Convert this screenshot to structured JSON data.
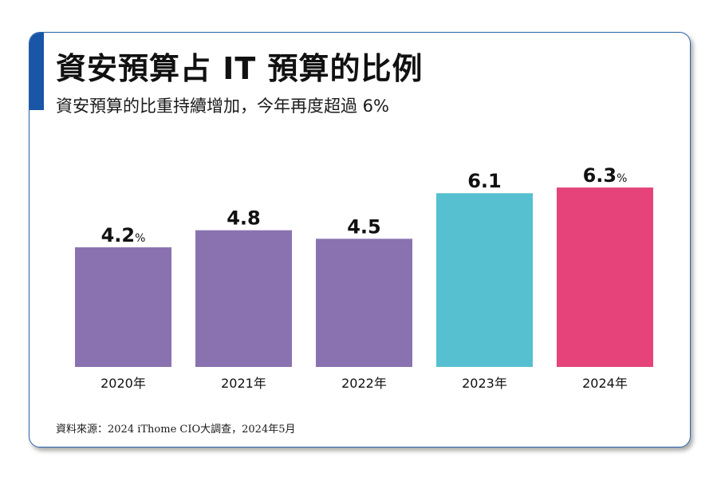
{
  "title": "資安預算占 IT 預算的比例",
  "subtitle": "資安預算的比重持續增加，今年再度超過 6%",
  "source": "資料來源：2024 iThome CIO大調查，2024年5月",
  "colors": {
    "accent": "#1a56a6",
    "border": "#2b63a8",
    "purple": "#8a72b0",
    "teal": "#56c0d0",
    "pink": "#e5437a"
  },
  "chart_data": {
    "type": "bar",
    "title": "資安預算占 IT 預算的比例",
    "subtitle": "資安預算的比重持續增加，今年再度超過 6%",
    "categories": [
      "2020年",
      "2021年",
      "2022年",
      "2023年",
      "2024年"
    ],
    "values": [
      4.2,
      4.8,
      4.5,
      6.1,
      6.3
    ],
    "value_labels": [
      "4.2",
      "4.8",
      "4.5",
      "6.1",
      "6.3"
    ],
    "unit_labels": [
      "%",
      "",
      "",
      "",
      "%"
    ],
    "bar_colors": [
      "#8a72b0",
      "#8a72b0",
      "#8a72b0",
      "#56c0d0",
      "#e5437a"
    ],
    "ylim": [
      0,
      7
    ],
    "grid": false,
    "xlabel": "",
    "ylabel": ""
  }
}
